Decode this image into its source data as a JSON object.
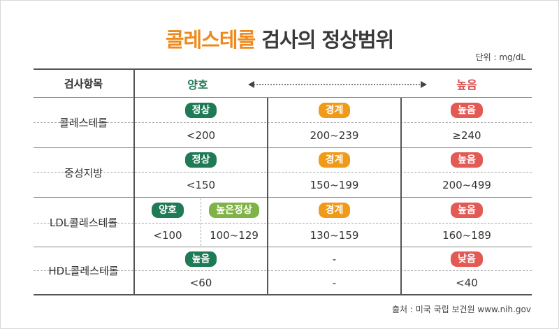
{
  "title_accent": "콜레스테롤",
  "title_rest": "검사의 정상범위",
  "unit": "단위 : mg/dL",
  "source": "출처 : 미국 국립 보건원 www.nih.gov",
  "header": {
    "item": "검사항목",
    "good": "양호",
    "high": "높음"
  },
  "rows": [
    {
      "name": "콜레스테롤",
      "badges": [
        "정상",
        "경계",
        "높음"
      ],
      "values": [
        "<200",
        "200~239",
        "≥240"
      ]
    },
    {
      "name": "중성지방",
      "badges": [
        "정상",
        "경계",
        "높음"
      ],
      "values": [
        "<150",
        "150~199",
        "200~499"
      ]
    },
    {
      "name": "LDL콜레스테롤",
      "badges": [
        "양호",
        "높은정상",
        "경계",
        "높음"
      ],
      "values": [
        "<100",
        "100~129",
        "130~159",
        "160~189"
      ]
    },
    {
      "name": "HDL콜레스테롤",
      "badges": [
        "높음",
        "-",
        "낮음"
      ],
      "values": [
        "<60",
        "-",
        "<40"
      ]
    }
  ],
  "colors": {
    "good": "#1f7a56",
    "good_light": "#7fb347",
    "border": "#f09a1a",
    "high": "#e35a55",
    "title": "#ee8a1c"
  }
}
